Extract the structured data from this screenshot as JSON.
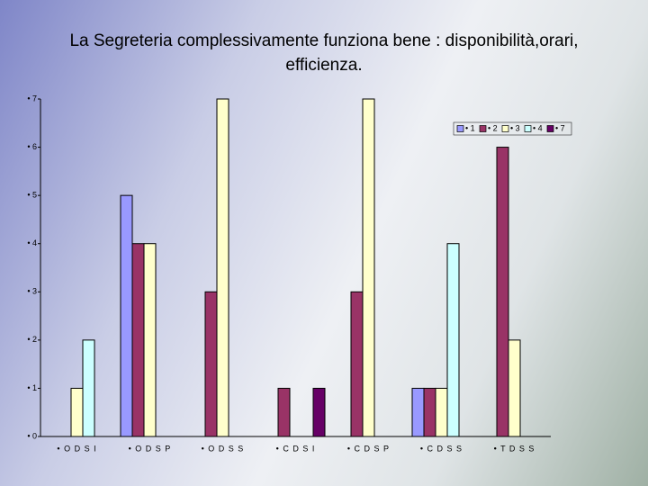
{
  "chart_data": {
    "type": "bar",
    "title": "La Segreteria  complessivamente  funziona bene : disponibilità,orari, efficienza.",
    "categories": [
      "• O D S I",
      "• O D S P",
      "• O D S S",
      "• C D S I",
      "• C D S P",
      "• C D S S",
      "• T D S S"
    ],
    "series": [
      {
        "name": "• 1",
        "color": "#9999ff",
        "values": [
          0,
          5,
          0,
          0,
          0,
          1,
          0
        ]
      },
      {
        "name": "• 2",
        "color": "#993366",
        "values": [
          0,
          4,
          3,
          1,
          3,
          1,
          6
        ]
      },
      {
        "name": "• 3",
        "color": "#ffffcc",
        "values": [
          1,
          4,
          7,
          0,
          7,
          1,
          2
        ]
      },
      {
        "name": "• 4",
        "color": "#ccffff",
        "values": [
          2,
          0,
          0,
          0,
          0,
          4,
          0
        ]
      },
      {
        "name": "• 7",
        "color": "#660066",
        "values": [
          0,
          0,
          0,
          1,
          0,
          0,
          0
        ]
      }
    ],
    "ylim": [
      0,
      7
    ],
    "yticks": [
      {
        "value": 0,
        "label": "• 0"
      },
      {
        "value": 1,
        "label": "• 1"
      },
      {
        "value": 2,
        "label": "• 2"
      },
      {
        "value": 3,
        "label": "• 3"
      },
      {
        "value": 4,
        "label": "• 4"
      },
      {
        "value": 5,
        "label": "• 5"
      },
      {
        "value": 6,
        "label": "• 6"
      },
      {
        "value": 7,
        "label": "• 7"
      }
    ],
    "grid": false,
    "legend": "top-right"
  }
}
